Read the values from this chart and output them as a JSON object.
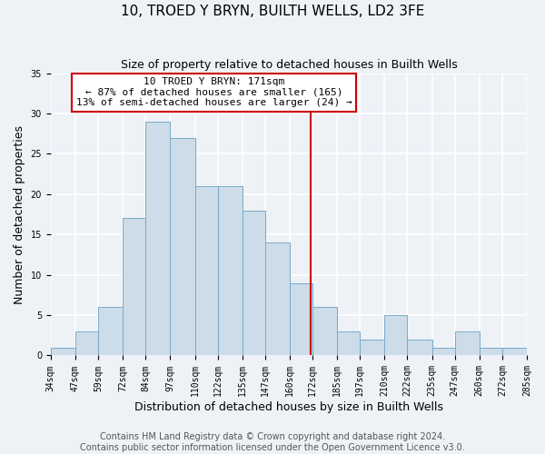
{
  "title": "10, TROED Y BRYN, BUILTH WELLS, LD2 3FE",
  "subtitle": "Size of property relative to detached houses in Builth Wells",
  "xlabel": "Distribution of detached houses by size in Builth Wells",
  "ylabel": "Number of detached properties",
  "bin_edges": [
    34,
    47,
    59,
    72,
    84,
    97,
    110,
    122,
    135,
    147,
    160,
    172,
    185,
    197,
    210,
    222,
    235,
    247,
    260,
    272,
    285
  ],
  "counts": [
    1,
    3,
    6,
    17,
    29,
    27,
    21,
    21,
    18,
    14,
    9,
    6,
    3,
    2,
    5,
    2,
    1,
    3,
    1,
    1
  ],
  "bar_facecolor": "#ccdce8",
  "bar_edgecolor": "#7aaac8",
  "property_value": 171,
  "vline_color": "#cc0000",
  "annotation_line1": "10 TROED Y BRYN: 171sqm",
  "annotation_line2": "← 87% of detached houses are smaller (165)",
  "annotation_line3": "13% of semi-detached houses are larger (24) →",
  "annotation_box_edgecolor": "#cc0000",
  "annotation_box_facecolor": "#ffffff",
  "ylim": [
    0,
    35
  ],
  "yticks": [
    0,
    5,
    10,
    15,
    20,
    25,
    30,
    35
  ],
  "tick_labels": [
    "34sqm",
    "47sqm",
    "59sqm",
    "72sqm",
    "84sqm",
    "97sqm",
    "110sqm",
    "122sqm",
    "135sqm",
    "147sqm",
    "160sqm",
    "172sqm",
    "185sqm",
    "197sqm",
    "210sqm",
    "222sqm",
    "235sqm",
    "247sqm",
    "260sqm",
    "272sqm",
    "285sqm"
  ],
  "footer_line1": "Contains HM Land Registry data © Crown copyright and database right 2024.",
  "footer_line2": "Contains public sector information licensed under the Open Government Licence v3.0.",
  "background_color": "#eef2f7",
  "grid_color": "#ffffff",
  "title_fontsize": 11,
  "subtitle_fontsize": 9,
  "axis_label_fontsize": 9,
  "tick_fontsize": 7,
  "annotation_fontsize": 8,
  "footer_fontsize": 7
}
